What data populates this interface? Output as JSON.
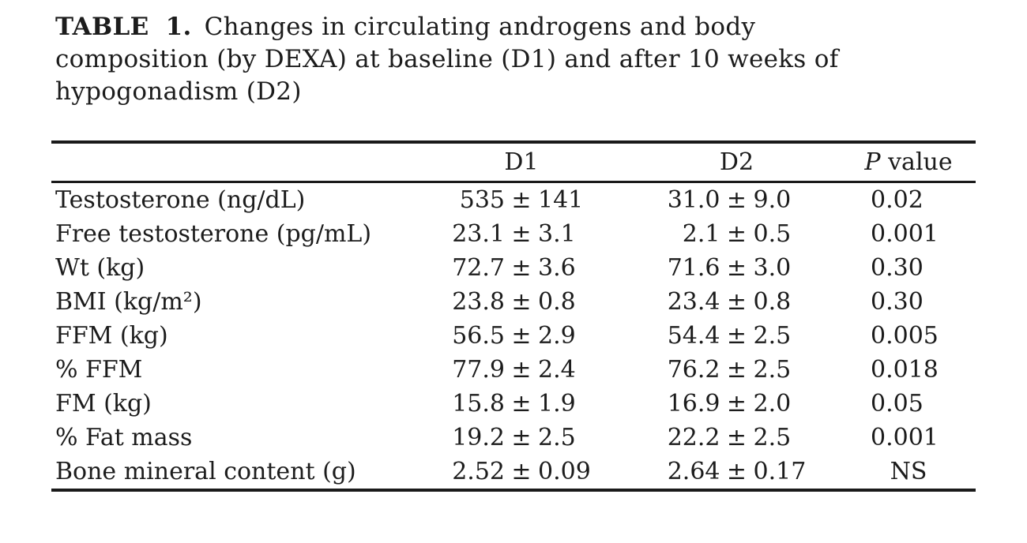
{
  "page": {
    "background": "#ffffff",
    "text_color": "#1c1c1c",
    "rule_color": "#1a1a1a"
  },
  "caption": {
    "label": "TABLE 1.",
    "line1": "Changes in circulating androgens and body",
    "line2": "composition (by DEXA) at baseline (D1) and after 10 weeks of",
    "line3": "hypogonadism (D2)"
  },
  "chart_data": {
    "type": "table",
    "pm": "±",
    "columns": [
      "",
      "D1",
      "D2",
      "P value"
    ],
    "p_header_italic": "P",
    "p_header_rest": "value",
    "rows": [
      {
        "label": "Testosterone (ng/dL)",
        "d1_mean": "535",
        "d1_sd": "141",
        "d2_mean": "31.0",
        "d2_sd": "9.0",
        "p": "0.02"
      },
      {
        "label": "Free testosterone (pg/mL)",
        "d1_mean": "23.1",
        "d1_sd": "3.1",
        "d2_mean": "2.1",
        "d2_sd": "0.5",
        "p": "0.001"
      },
      {
        "label": "Wt (kg)",
        "d1_mean": "72.7",
        "d1_sd": "3.6",
        "d2_mean": "71.6",
        "d2_sd": "3.0",
        "p": "0.30"
      },
      {
        "label": "BMI (kg/m²)",
        "d1_mean": "23.8",
        "d1_sd": "0.8",
        "d2_mean": "23.4",
        "d2_sd": "0.8",
        "p": "0.30"
      },
      {
        "label": "FFM (kg)",
        "d1_mean": "56.5",
        "d1_sd": "2.9",
        "d2_mean": "54.4",
        "d2_sd": "2.5",
        "p": "0.005"
      },
      {
        "label": "% FFM",
        "d1_mean": "77.9",
        "d1_sd": "2.4",
        "d2_mean": "76.2",
        "d2_sd": "2.5",
        "p": "0.018"
      },
      {
        "label": "FM (kg)",
        "d1_mean": "15.8",
        "d1_sd": "1.9",
        "d2_mean": "16.9",
        "d2_sd": "2.0",
        "p": "0.05"
      },
      {
        "label": "% Fat mass",
        "d1_mean": "19.2",
        "d1_sd": "2.5",
        "d2_mean": "22.2",
        "d2_sd": "2.5",
        "p": "0.001"
      },
      {
        "label": "Bone mineral content (g)",
        "d1_mean": "2.52",
        "d1_sd": "0.09",
        "d2_mean": "2.64",
        "d2_sd": "0.17",
        "p": "NS"
      }
    ]
  }
}
